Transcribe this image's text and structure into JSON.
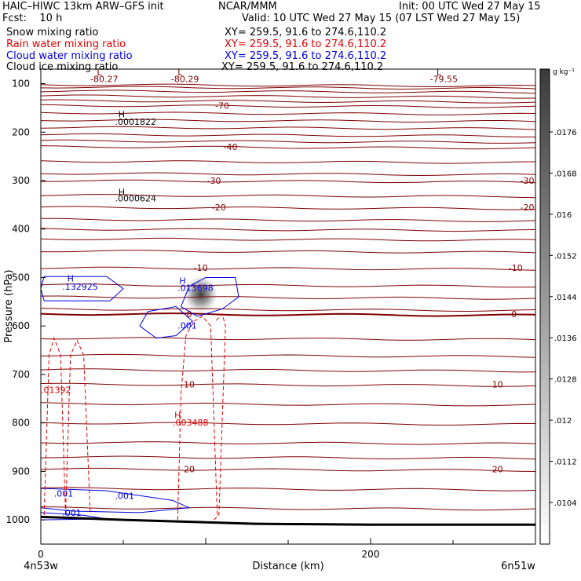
{
  "header": {
    "line1_left": "HAIC–HIWC 13km ARW–GFS init",
    "line1_mid": "NCAR/MMM",
    "line1_right": "Init: 00 UTC Wed 27 May 15",
    "line2_left": "Fcst:    10 h",
    "line2_right": "Valid: 10 UTC Wed 27 May 15 (07 LST Wed 27 May 15)",
    "fields": [
      {
        "name": "Snow mixing ratio",
        "xy": "XY= 259.5, 91.6 to 274.6,110.2",
        "color": "#000000"
      },
      {
        "name": "Rain water mixing ratio",
        "xy": "XY= 259.5, 91.6 to 274.6,110.2",
        "color": "#e00000"
      },
      {
        "name": "Cloud water mixing ratio",
        "xy": "XY= 259.5, 91.6 to 274.6,110.2",
        "color": "#0000dd"
      },
      {
        "name": "Cloud ice mixing ratio",
        "xy": "XY= 259.5, 91.6 to 274.6,110.2",
        "color": "#000000"
      }
    ]
  },
  "chart_data": {
    "type": "cross-section",
    "xlabel": "Distance (km)",
    "ylabel": "Pressure (hPa)",
    "xlim": [
      0,
      300
    ],
    "ylim": [
      1050,
      70
    ],
    "x_ticks": [
      {
        "v": 0,
        "label": "0"
      },
      {
        "v": 200,
        "label": "200"
      }
    ],
    "y_ticks": [
      100,
      200,
      300,
      400,
      500,
      600,
      700,
      800,
      900,
      1000
    ],
    "x_end_labels": {
      "left": "4n53w",
      "right": "6n51w"
    },
    "colorbar": {
      "unit": "g kg⁻¹",
      "ticks": [
        ".0176",
        ".0168",
        ".016",
        ".0152",
        ".0144",
        ".0136",
        ".0128",
        ".012",
        ".0112",
        ".0104"
      ]
    },
    "temperature_contours": [
      {
        "p": 102
      },
      {
        "p": 107
      },
      {
        "p": 115
      },
      {
        "p": 125
      },
      {
        "p": 135
      },
      {
        "p": 145,
        "label": "-70",
        "lx": 110
      },
      {
        "p": 160
      },
      {
        "p": 175
      },
      {
        "p": 190
      },
      {
        "p": 205
      },
      {
        "p": 218
      },
      {
        "p": 230,
        "label": "-40",
        "lx": 115
      },
      {
        "p": 260
      },
      {
        "p": 285
      },
      {
        "p": 300,
        "label": "-30",
        "lx": 105,
        "label2": "-30",
        "lx2": 295
      },
      {
        "p": 330
      },
      {
        "p": 355,
        "label": "-20",
        "lx": 108,
        "label2": "-20",
        "lx2": 295
      },
      {
        "p": 380
      },
      {
        "p": 400
      },
      {
        "p": 420
      },
      {
        "p": 445
      },
      {
        "p": 480,
        "label": "-10",
        "lx": 97,
        "label2": "-10",
        "lx2": 288
      },
      {
        "p": 515
      },
      {
        "p": 540
      },
      {
        "p": 565
      },
      {
        "p": 575,
        "label": "0",
        "lx": 90,
        "label2": "0",
        "lx2": 287,
        "bold": true
      },
      {
        "p": 625
      },
      {
        "p": 660
      },
      {
        "p": 690
      },
      {
        "p": 720,
        "label": "10",
        "lx": 90,
        "label2": "10",
        "lx2": 277
      },
      {
        "p": 760
      },
      {
        "p": 800
      },
      {
        "p": 840
      },
      {
        "p": 870
      },
      {
        "p": 895,
        "label": "20",
        "lx": 90,
        "label2": "20",
        "lx2": 277
      },
      {
        "p": 935
      },
      {
        "p": 975
      }
    ],
    "terrain_pressure": [
      [
        0,
        994
      ],
      [
        20,
        996
      ],
      [
        50,
        1000
      ],
      [
        80,
        1003
      ],
      [
        130,
        1008
      ],
      [
        200,
        1010
      ],
      [
        300,
        1010
      ]
    ],
    "cloud_water_contours": [
      {
        "points": [
          [
            2,
            498
          ],
          [
            40,
            498
          ],
          [
            50,
            523
          ],
          [
            42,
            548
          ],
          [
            2,
            548
          ],
          [
            0,
            523
          ]
        ]
      },
      {
        "points": [
          [
            90,
            518
          ],
          [
            100,
            500
          ],
          [
            118,
            500
          ],
          [
            120,
            540
          ],
          [
            110,
            565
          ],
          [
            95,
            580
          ],
          [
            85,
            560
          ]
        ]
      },
      {
        "points": [
          [
            65,
            570
          ],
          [
            82,
            560
          ],
          [
            92,
            590
          ],
          [
            82,
            620
          ],
          [
            70,
            625
          ],
          [
            60,
            600
          ]
        ]
      },
      {
        "points": [
          [
            0,
            935
          ],
          [
            40,
            940
          ],
          [
            80,
            960
          ],
          [
            90,
            975
          ],
          [
            60,
            985
          ],
          [
            20,
            982
          ],
          [
            0,
            975
          ]
        ]
      },
      {
        "points": [
          [
            0,
            985
          ],
          [
            25,
            990
          ],
          [
            40,
            998
          ],
          [
            0,
            1000
          ]
        ]
      }
    ],
    "rain_water_contours": [
      {
        "points": [
          [
            2,
            990
          ],
          [
            5,
            660
          ],
          [
            8,
            625
          ],
          [
            12,
            660
          ],
          [
            15,
            990
          ]
        ]
      },
      {
        "points": [
          [
            15,
            990
          ],
          [
            18,
            660
          ],
          [
            22,
            630
          ],
          [
            26,
            660
          ],
          [
            30,
            990
          ]
        ]
      },
      {
        "points": [
          [
            83,
            1000
          ],
          [
            85,
            740
          ],
          [
            88,
            620
          ],
          [
            93,
            590
          ],
          [
            98,
            580
          ],
          [
            103,
            600
          ],
          [
            107,
            990
          ]
        ]
      },
      {
        "points": [
          [
            105,
            1000
          ],
          [
            108,
            990
          ],
          [
            112,
            600
          ],
          [
            110,
            575
          ],
          [
            106,
            590
          ]
        ]
      }
    ],
    "annotations": [
      {
        "text": "L",
        "x": 34,
        "p": 83,
        "color": "#800000"
      },
      {
        "text": "-80.27",
        "x": 30,
        "p": 97,
        "color": "#800000"
      },
      {
        "text": "L",
        "x": 83,
        "p": 83,
        "color": "#800000"
      },
      {
        "text": "-80.29",
        "x": 79,
        "p": 97,
        "color": "#800000"
      },
      {
        "text": "L",
        "x": 240,
        "p": 83,
        "color": "#800000"
      },
      {
        "text": "-79.55",
        "x": 236,
        "p": 97,
        "color": "#800000"
      },
      {
        "text": "H",
        "x": 47,
        "p": 170,
        "color": "#000000"
      },
      {
        "text": ".0001822",
        "x": 45,
        "p": 185,
        "color": "#000000"
      },
      {
        "text": "H",
        "x": 47,
        "p": 330,
        "color": "#000000"
      },
      {
        "text": ".0000624",
        "x": 45,
        "p": 343,
        "color": "#000000"
      },
      {
        "text": "H",
        "x": 16,
        "p": 508,
        "color": "#0000dd"
      },
      {
        "text": ".132925",
        "x": 13,
        "p": 525,
        "color": "#0000dd"
      },
      {
        "text": "H",
        "x": 84,
        "p": 513,
        "color": "#0000dd"
      },
      {
        "text": ".013698",
        "x": 83,
        "p": 528,
        "color": "#0000dd"
      },
      {
        "text": ".001",
        "x": 83,
        "p": 605,
        "color": "#0000dd"
      },
      {
        "text": ".01392",
        "x": 0,
        "p": 738,
        "color": "#e00000"
      },
      {
        "text": "H",
        "x": 81,
        "p": 790,
        "color": "#e00000"
      },
      {
        "text": ".003488",
        "x": 80,
        "p": 805,
        "color": "#e00000"
      },
      {
        "text": ".001",
        "x": 8,
        "p": 952,
        "color": "#0000dd"
      },
      {
        "text": ".001",
        "x": 45,
        "p": 957,
        "color": "#0000dd"
      },
      {
        "text": ".001",
        "x": 13,
        "p": 992,
        "color": "#0000dd"
      }
    ],
    "snow_shading": [
      {
        "x": 97,
        "p": 535,
        "rx": 22,
        "ry": 24
      }
    ]
  }
}
